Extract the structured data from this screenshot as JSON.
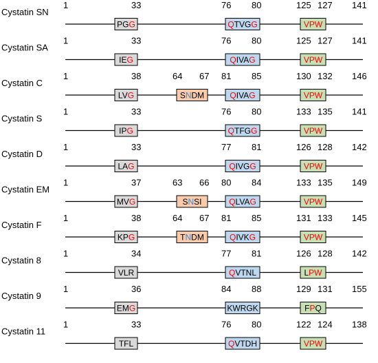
{
  "colors": {
    "box_gray": "#d9d9d9",
    "box_orange": "#f8cbad",
    "box_blue": "#bdd7ee",
    "box_green": "#c6e0b4",
    "red": "#ff0000",
    "blue": "#4a86c8",
    "black": "#000000"
  },
  "rows": [
    {
      "label": "Cystatin SN",
      "start": "1",
      "end": "141",
      "boxes": [
        {
          "slot": "b1",
          "color": "gray",
          "pos": [
            "33"
          ],
          "letters": [
            {
              "t": "PG",
              "c": "black"
            },
            {
              "t": "G",
              "c": "red"
            }
          ]
        },
        {
          "slot": "b3",
          "color": "blue",
          "pos": [
            "76",
            "80"
          ],
          "letters": [
            {
              "t": "Q",
              "c": "red"
            },
            {
              "t": "TVG",
              "c": "black"
            },
            {
              "t": "G",
              "c": "red"
            }
          ]
        },
        {
          "slot": "b4",
          "color": "green",
          "pos": [
            "125",
            "127"
          ],
          "letters": [
            {
              "t": "VPW",
              "c": "red"
            }
          ]
        }
      ]
    },
    {
      "label": "Cystatin SA",
      "start": "1",
      "end": "141",
      "boxes": [
        {
          "slot": "b1",
          "color": "gray",
          "pos": [
            "33"
          ],
          "letters": [
            {
              "t": "IE",
              "c": "black"
            },
            {
              "t": "G",
              "c": "red"
            }
          ]
        },
        {
          "slot": "b3",
          "color": "blue",
          "pos": [
            "76",
            "80"
          ],
          "letters": [
            {
              "t": "Q",
              "c": "red"
            },
            {
              "t": "IVA",
              "c": "black"
            },
            {
              "t": "G",
              "c": "red"
            }
          ]
        },
        {
          "slot": "b4",
          "color": "green",
          "pos": [
            "125",
            "127"
          ],
          "letters": [
            {
              "t": "VPW",
              "c": "red"
            }
          ]
        }
      ]
    },
    {
      "label": "Cystatin C",
      "start": "1",
      "end": "146",
      "boxes": [
        {
          "slot": "b1",
          "color": "gray",
          "pos": [
            "38"
          ],
          "letters": [
            {
              "t": "LV",
              "c": "black"
            },
            {
              "t": "G",
              "c": "red"
            }
          ]
        },
        {
          "slot": "b2",
          "color": "orange",
          "pos": [
            "64",
            "67"
          ],
          "letters": [
            {
              "t": "S",
              "c": "black"
            },
            {
              "t": "N",
              "c": "blue"
            },
            {
              "t": "DM",
              "c": "black"
            }
          ]
        },
        {
          "slot": "b3",
          "color": "blue",
          "pos": [
            "81",
            "85"
          ],
          "letters": [
            {
              "t": "Q",
              "c": "red"
            },
            {
              "t": "IVA",
              "c": "black"
            },
            {
              "t": "G",
              "c": "red"
            }
          ]
        },
        {
          "slot": "b4",
          "color": "green",
          "pos": [
            "130",
            "132"
          ],
          "letters": [
            {
              "t": "VPW",
              "c": "red"
            }
          ]
        }
      ]
    },
    {
      "label": "Cystatin S",
      "start": "1",
      "end": "141",
      "boxes": [
        {
          "slot": "b1",
          "color": "gray",
          "pos": [
            "33"
          ],
          "letters": [
            {
              "t": "IP",
              "c": "black"
            },
            {
              "t": "G",
              "c": "red"
            }
          ]
        },
        {
          "slot": "b3",
          "color": "blue",
          "pos": [
            "76",
            "80"
          ],
          "letters": [
            {
              "t": "Q",
              "c": "red"
            },
            {
              "t": "TFG",
              "c": "black"
            },
            {
              "t": "G",
              "c": "red"
            }
          ]
        },
        {
          "slot": "b4",
          "color": "green",
          "pos": [
            "133",
            "135"
          ],
          "letters": [
            {
              "t": "VPW",
              "c": "red"
            }
          ]
        }
      ]
    },
    {
      "label": "Cystatin D",
      "start": "1",
      "end": "142",
      "boxes": [
        {
          "slot": "b1",
          "color": "gray",
          "pos": [
            "33"
          ],
          "letters": [
            {
              "t": "LA",
              "c": "black"
            },
            {
              "t": "G",
              "c": "red"
            }
          ]
        },
        {
          "slot": "b3",
          "color": "blue",
          "pos": [
            "77",
            "81"
          ],
          "letters": [
            {
              "t": "Q",
              "c": "red"
            },
            {
              "t": "IVG",
              "c": "black"
            },
            {
              "t": "G",
              "c": "red"
            }
          ]
        },
        {
          "slot": "b4",
          "color": "green",
          "pos": [
            "126",
            "128"
          ],
          "letters": [
            {
              "t": "VPW",
              "c": "red"
            }
          ]
        }
      ]
    },
    {
      "label": "Cystatin EM",
      "start": "1",
      "end": "149",
      "boxes": [
        {
          "slot": "b1",
          "color": "gray",
          "pos": [
            "37"
          ],
          "letters": [
            {
              "t": "MV",
              "c": "black"
            },
            {
              "t": "G",
              "c": "red"
            }
          ]
        },
        {
          "slot": "b2",
          "color": "orange",
          "pos": [
            "63",
            "66"
          ],
          "letters": [
            {
              "t": "S",
              "c": "black"
            },
            {
              "t": "N",
              "c": "blue"
            },
            {
              "t": "SI",
              "c": "black"
            }
          ]
        },
        {
          "slot": "b3",
          "color": "blue",
          "pos": [
            "80",
            "84"
          ],
          "letters": [
            {
              "t": "Q",
              "c": "red"
            },
            {
              "t": "LVA",
              "c": "black"
            },
            {
              "t": "G",
              "c": "red"
            }
          ]
        },
        {
          "slot": "b4",
          "color": "green",
          "pos": [
            "133",
            "135"
          ],
          "letters": [
            {
              "t": "VPW",
              "c": "red"
            }
          ]
        }
      ]
    },
    {
      "label": "Cystatin F",
      "start": "1",
      "end": "145",
      "boxes": [
        {
          "slot": "b1",
          "color": "gray",
          "pos": [
            "38"
          ],
          "letters": [
            {
              "t": "KP",
              "c": "black"
            },
            {
              "t": "G",
              "c": "red"
            }
          ]
        },
        {
          "slot": "b2",
          "color": "orange",
          "pos": [
            "64",
            "67"
          ],
          "letters": [
            {
              "t": "T",
              "c": "black"
            },
            {
              "t": "N",
              "c": "blue"
            },
            {
              "t": "DM",
              "c": "black"
            }
          ]
        },
        {
          "slot": "b3",
          "color": "blue",
          "pos": [
            "81",
            "85"
          ],
          "letters": [
            {
              "t": "Q",
              "c": "red"
            },
            {
              "t": "IVK",
              "c": "black"
            },
            {
              "t": "G",
              "c": "red"
            }
          ]
        },
        {
          "slot": "b4",
          "color": "green",
          "pos": [
            "131",
            "133"
          ],
          "letters": [
            {
              "t": "VPW",
              "c": "red"
            }
          ]
        }
      ]
    },
    {
      "label": "Cystatin 8",
      "start": "1",
      "end": "142",
      "boxes": [
        {
          "slot": "b1",
          "color": "gray",
          "pos": [
            "34"
          ],
          "letters": [
            {
              "t": "VLR",
              "c": "black"
            }
          ]
        },
        {
          "slot": "b3",
          "color": "blue",
          "pos": [
            "77",
            "81"
          ],
          "letters": [
            {
              "t": "Q",
              "c": "red"
            },
            {
              "t": "VTNL",
              "c": "black"
            }
          ]
        },
        {
          "slot": "b4",
          "color": "green",
          "pos": [
            "126",
            "128"
          ],
          "letters": [
            {
              "t": "L",
              "c": "black"
            },
            {
              "t": "PW",
              "c": "red"
            }
          ]
        }
      ]
    },
    {
      "label": "Cystatin 9",
      "start": "1",
      "end": "155",
      "boxes": [
        {
          "slot": "b1",
          "color": "gray",
          "pos": [
            "36"
          ],
          "letters": [
            {
              "t": "EM",
              "c": "black"
            },
            {
              "t": "G",
              "c": "red"
            }
          ]
        },
        {
          "slot": "b3",
          "color": "blue",
          "pos": [
            "84",
            "88"
          ],
          "letters": [
            {
              "t": "KWRGK",
              "c": "black"
            }
          ]
        },
        {
          "slot": "b4",
          "color": "green",
          "pos": [
            "129",
            "131"
          ],
          "letters": [
            {
              "t": "F",
              "c": "black"
            },
            {
              "t": "P",
              "c": "red"
            },
            {
              "t": "Q",
              "c": "black"
            }
          ]
        }
      ]
    },
    {
      "label": "Cystatin 11",
      "start": "1",
      "end": "138",
      "boxes": [
        {
          "slot": "b1",
          "color": "gray",
          "pos": [
            "33"
          ],
          "letters": [
            {
              "t": "TFL",
              "c": "black"
            }
          ]
        },
        {
          "slot": "b3",
          "color": "blue",
          "pos": [
            "76",
            "80"
          ],
          "letters": [
            {
              "t": "Q",
              "c": "red"
            },
            {
              "t": "VTDH",
              "c": "black"
            }
          ]
        },
        {
          "slot": "b4",
          "color": "green",
          "pos": [
            "122",
            "124"
          ],
          "letters": [
            {
              "t": "VPW",
              "c": "red"
            }
          ]
        }
      ]
    }
  ]
}
